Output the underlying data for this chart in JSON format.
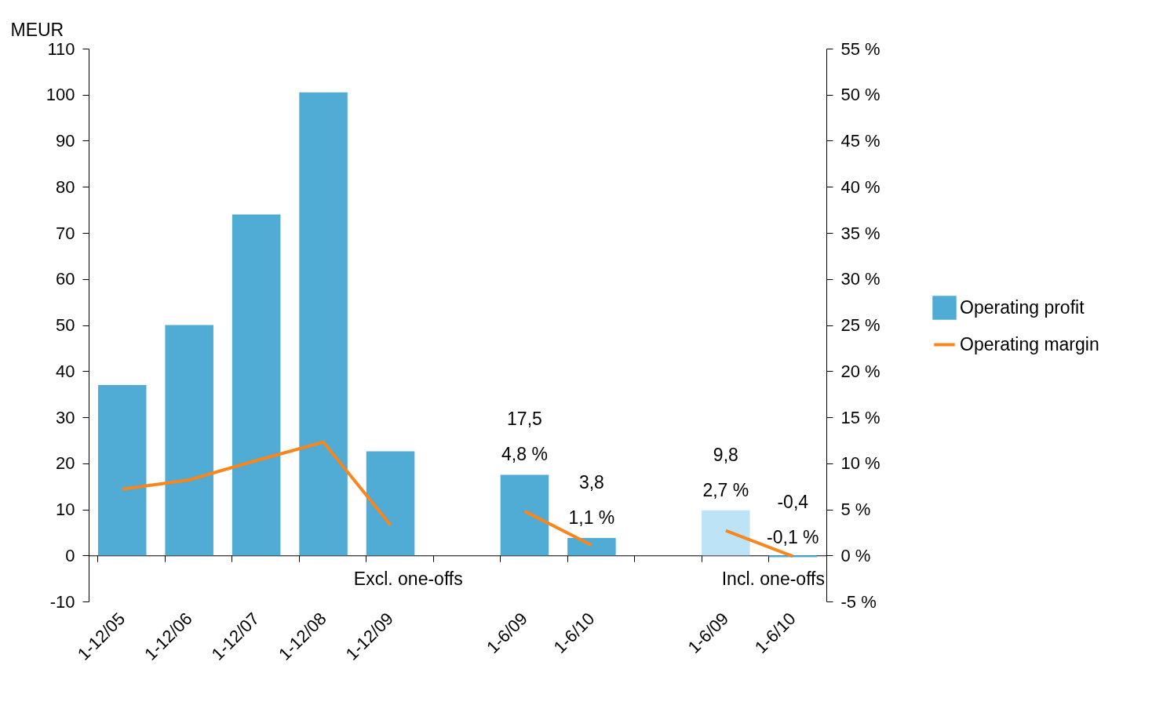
{
  "chart_data": {
    "type": "bar",
    "ylabel": "MEUR",
    "categories": [
      "1-12/05",
      "1-12/06",
      "1-12/07",
      "1-12/08",
      "1-12/09",
      null,
      "1-6/09",
      "1-6/10",
      null,
      "1-6/09",
      "1-6/10"
    ],
    "series": [
      {
        "name": "Operating profit",
        "color": "#50acd5",
        "colors": [
          "#50acd5",
          "#50acd5",
          "#50acd5",
          "#50acd5",
          "#50acd5",
          null,
          "#50acd5",
          "#50acd5",
          null,
          "#bde3f6",
          "#50acd5"
        ],
        "values": [
          37,
          50,
          74,
          100.5,
          22.6,
          null,
          17.5,
          3.8,
          null,
          9.8,
          -0.4
        ],
        "value_labels": [
          null,
          null,
          null,
          null,
          null,
          null,
          "17,5",
          "3,8",
          null,
          "9,8",
          "-0,4"
        ]
      },
      {
        "name": "Operating margin",
        "type": "line",
        "axis": "y2",
        "color": "#f7861f",
        "values": [
          7.2,
          8.2,
          10.3,
          12.3,
          3.3,
          null,
          4.8,
          1.1,
          null,
          2.7,
          -0.1
        ],
        "value_labels": [
          null,
          null,
          null,
          null,
          null,
          null,
          "4,8 %",
          "1,1 %",
          null,
          "2,7 %",
          "-0,1 %"
        ]
      }
    ],
    "ylim": [
      -10,
      110
    ],
    "yticks": [
      -10,
      0,
      10,
      20,
      30,
      40,
      50,
      60,
      70,
      80,
      90,
      100,
      110
    ],
    "y2lim": [
      -5,
      55
    ],
    "y2ticks": [
      {
        "value": -5,
        "label": "-5 %"
      },
      {
        "value": 0,
        "label": "0 %"
      },
      {
        "value": 5,
        "label": "5 %"
      },
      {
        "value": 10,
        "label": "10 %"
      },
      {
        "value": 15,
        "label": "15 %"
      },
      {
        "value": 20,
        "label": "20 %"
      },
      {
        "value": 25,
        "label": "25 %"
      },
      {
        "value": 30,
        "label": "30 %"
      },
      {
        "value": 35,
        "label": "35 %"
      },
      {
        "value": 40,
        "label": "40 %"
      },
      {
        "value": 45,
        "label": "45 %"
      },
      {
        "value": 50,
        "label": "50 %"
      },
      {
        "value": 55,
        "label": "55 %"
      }
    ],
    "annotations": [
      "Excl. one-offs",
      "Incl. one-offs"
    ],
    "legend": "right"
  }
}
